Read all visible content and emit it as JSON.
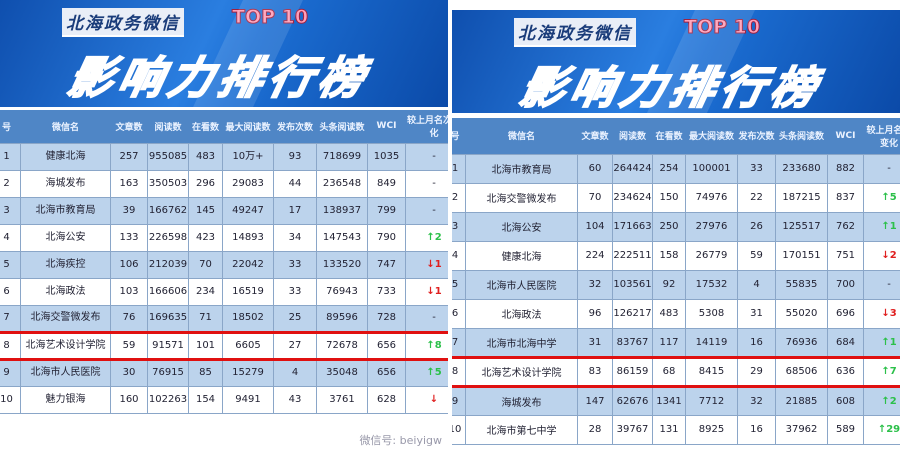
{
  "columns": [
    "号",
    "微信名",
    "文章数",
    "阅读数",
    "在看数",
    "最大阅读数",
    "发布次数",
    "头条阅读数",
    "WCI",
    "较上月名次变化"
  ],
  "change_colors": {
    "up": "#2cc04a",
    "down": "#e02020"
  },
  "left": {
    "banner": {
      "subtitle": "北海政务微信",
      "badge": "TOP 10",
      "title": "影响力排行榜"
    },
    "rows": [
      [
        "1",
        "健康北海",
        "257",
        "955085",
        "483",
        "10万+",
        "93",
        "718699",
        "1035",
        "-"
      ],
      [
        "2",
        "海城发布",
        "163",
        "350503",
        "296",
        "29083",
        "44",
        "236548",
        "849",
        "-"
      ],
      [
        "3",
        "北海市教育局",
        "39",
        "166762",
        "145",
        "49247",
        "17",
        "138937",
        "799",
        "-"
      ],
      [
        "4",
        "北海公安",
        "133",
        "226598",
        "423",
        "14893",
        "34",
        "147543",
        "790",
        "↑2"
      ],
      [
        "5",
        "北海疾控",
        "106",
        "212039",
        "70",
        "22042",
        "33",
        "133520",
        "747",
        "↓1"
      ],
      [
        "6",
        "北海政法",
        "103",
        "166606",
        "234",
        "16519",
        "33",
        "76943",
        "733",
        "↓1"
      ],
      [
        "7",
        "北海交警微发布",
        "76",
        "169635",
        "71",
        "18502",
        "25",
        "89596",
        "728",
        "-"
      ],
      [
        "8",
        "北海艺术设计学院",
        "59",
        "91571",
        "101",
        "6605",
        "27",
        "72678",
        "656",
        "↑8"
      ],
      [
        "9",
        "北海市人民医院",
        "30",
        "76915",
        "85",
        "15279",
        "4",
        "35048",
        "656",
        "↑5"
      ],
      [
        "10",
        "魅力银海",
        "160",
        "102263",
        "154",
        "9491",
        "43",
        "3761",
        "628",
        "↓"
      ]
    ],
    "highlight_rank": "8",
    "watermark": "微信号: beiyigw"
  },
  "right": {
    "banner": {
      "subtitle": "北海政务微信",
      "badge": "TOP 10",
      "title": "影响力排行榜"
    },
    "rows": [
      [
        "1",
        "北海市教育局",
        "60",
        "264424",
        "254",
        "100001",
        "33",
        "233680",
        "882",
        "-"
      ],
      [
        "2",
        "北海交警微发布",
        "70",
        "234624",
        "150",
        "74976",
        "22",
        "187215",
        "837",
        "↑5"
      ],
      [
        "3",
        "北海公安",
        "104",
        "171663",
        "250",
        "27976",
        "26",
        "125517",
        "762",
        "↑1"
      ],
      [
        "4",
        "健康北海",
        "224",
        "222511",
        "158",
        "26779",
        "59",
        "170151",
        "751",
        "↓2"
      ],
      [
        "5",
        "北海市人民医院",
        "32",
        "103561",
        "92",
        "17532",
        "4",
        "55835",
        "700",
        "-"
      ],
      [
        "6",
        "北海政法",
        "96",
        "126217",
        "483",
        "5308",
        "31",
        "55020",
        "696",
        "↓3"
      ],
      [
        "7",
        "北海市北海中学",
        "31",
        "83767",
        "117",
        "14119",
        "16",
        "76936",
        "684",
        "↑1"
      ],
      [
        "8",
        "北海艺术设计学院",
        "83",
        "86159",
        "68",
        "8415",
        "29",
        "68506",
        "636",
        "↑7"
      ],
      [
        "9",
        "海城发布",
        "147",
        "62676",
        "1341",
        "7712",
        "32",
        "21885",
        "608",
        "↑2"
      ],
      [
        "10",
        "北海市第七中学",
        "28",
        "39767",
        "131",
        "8925",
        "16",
        "37962",
        "589",
        "↑29"
      ]
    ],
    "highlight_rank": "8"
  }
}
